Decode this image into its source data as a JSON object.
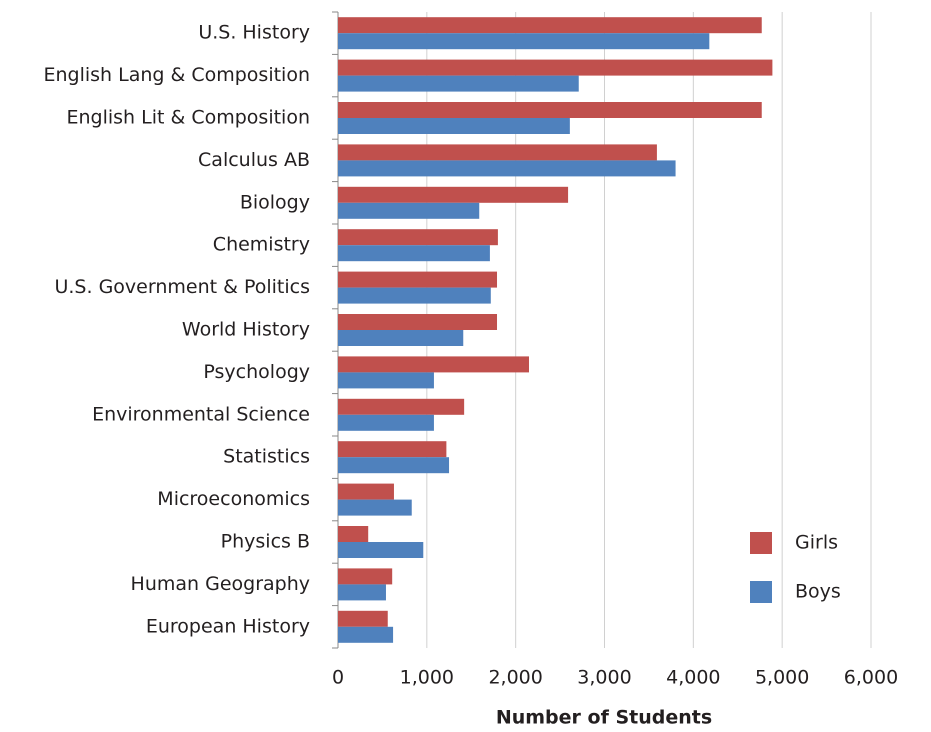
{
  "chart_data": {
    "type": "bar",
    "orientation": "horizontal",
    "x_label": "Number of Students",
    "categories": [
      "U.S. History",
      "English Lang & Composition",
      "English Lit & Composition",
      "Calculus AB",
      "Biology",
      "Chemistry",
      "U.S. Government & Politics",
      "World History",
      "Psychology",
      "Environmental Science",
      "Statistics",
      "Microeconomics",
      "Physics B",
      "Human Geography",
      "European History"
    ],
    "series": [
      {
        "name": "Girls",
        "color": "#c0504d",
        "values": [
          4770,
          4890,
          4770,
          3590,
          2590,
          1800,
          1790,
          1790,
          2150,
          1420,
          1220,
          630,
          340,
          610,
          560
        ]
      },
      {
        "name": "Boys",
        "color": "#4f81bd",
        "values": [
          4180,
          2710,
          2610,
          3800,
          1590,
          1710,
          1720,
          1410,
          1080,
          1080,
          1250,
          830,
          960,
          540,
          620
        ]
      }
    ],
    "xlim": [
      0,
      6000
    ],
    "xticks": [
      0,
      {
        "value": 1000,
        "label": "1,000"
      },
      {
        "value": 2000,
        "label": "2,000"
      },
      {
        "value": 3000,
        "label": "3,000"
      },
      {
        "value": 4000,
        "label": "4,000"
      },
      {
        "value": 5000,
        "label": "5,000"
      },
      {
        "value": 6000,
        "label": "6,000"
      }
    ],
    "grid": true,
    "legend": "lower right"
  }
}
